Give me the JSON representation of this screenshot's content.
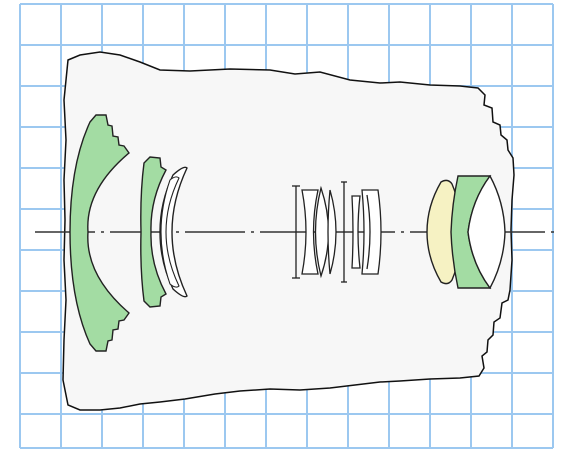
{
  "diagram": {
    "colors": {
      "grid_line": "#9cc8f0",
      "grid_background": "#ffffff",
      "barrel_fill": "#f7f7f7",
      "barrel_stroke": "#111111",
      "element_green": "#a3dca3",
      "element_yellow": "#f6f2c3",
      "element_white": "#ffffff",
      "optical_axis": "#333333",
      "lens_stroke": "#222222"
    }
  }
}
